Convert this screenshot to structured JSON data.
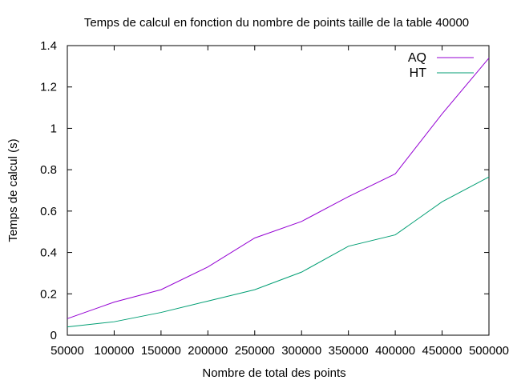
{
  "chart_data": {
    "type": "line",
    "title": "Temps de calcul en fonction du nombre de points taille de la table 40000",
    "xlabel": "Nombre de total des points",
    "ylabel": "Temps de calcul (s)",
    "xlim": [
      50000,
      500000
    ],
    "ylim": [
      0,
      1.4
    ],
    "xticks": [
      "50000",
      "100000",
      "150000",
      "200000",
      "250000",
      "300000",
      "350000",
      "400000",
      "450000",
      "500000"
    ],
    "xtick_values": [
      50000,
      100000,
      150000,
      200000,
      250000,
      300000,
      350000,
      400000,
      450000,
      500000
    ],
    "yticks": [
      "0",
      "0.2",
      "0.4",
      "0.6",
      "0.8",
      "1",
      "1.2",
      "1.4"
    ],
    "ytick_values": [
      0,
      0.2,
      0.4,
      0.6,
      0.8,
      1,
      1.2,
      1.4
    ],
    "grid": false,
    "legend_position": "top-right",
    "x": [
      50000,
      100000,
      150000,
      200000,
      250000,
      300000,
      350000,
      400000,
      450000,
      500000
    ],
    "series": [
      {
        "name": "AQ",
        "color": "#9400d3",
        "values": [
          0.08,
          0.16,
          0.22,
          0.33,
          0.47,
          0.55,
          0.67,
          0.78,
          1.07,
          1.34
        ]
      },
      {
        "name": "HT",
        "color": "#009e73",
        "values": [
          0.04,
          0.065,
          0.11,
          0.165,
          0.22,
          0.305,
          0.43,
          0.485,
          0.645,
          0.765
        ]
      }
    ]
  }
}
